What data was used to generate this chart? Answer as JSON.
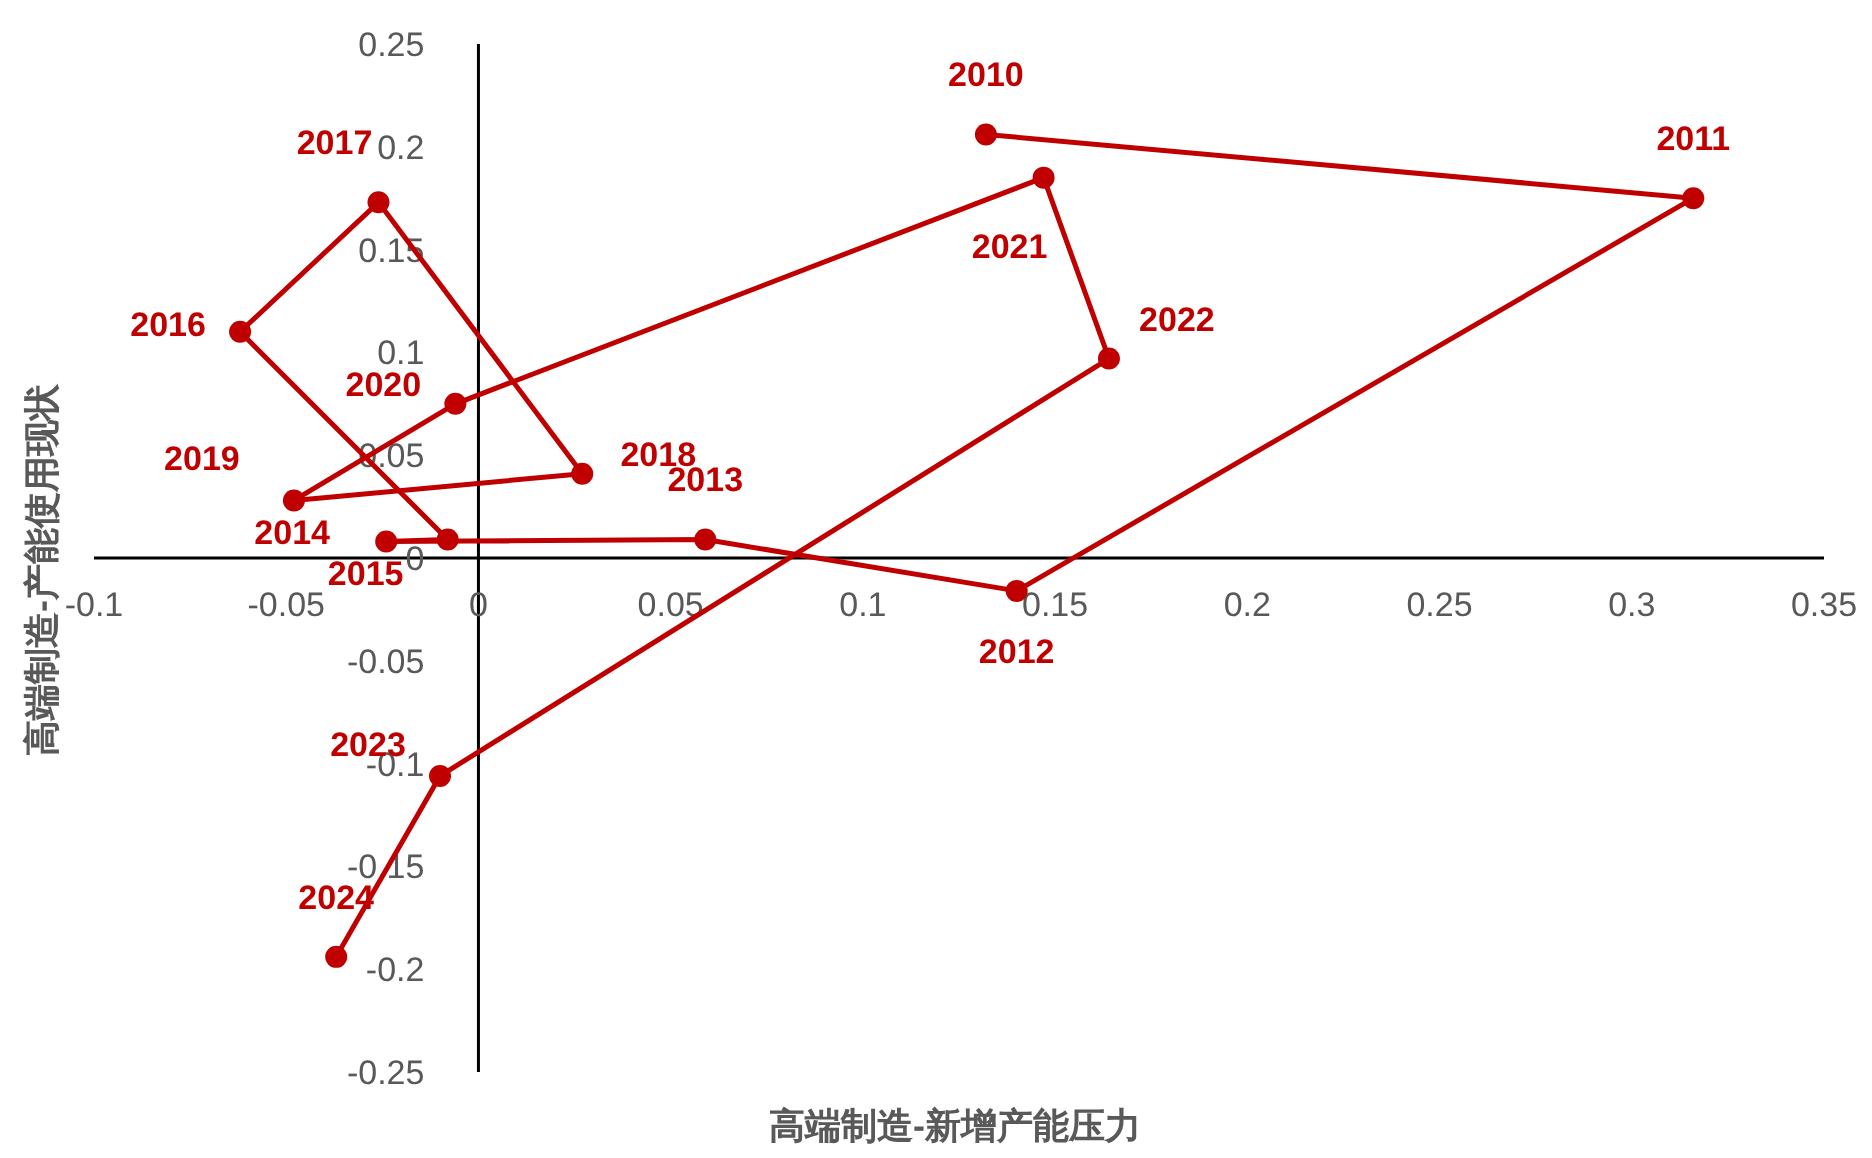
{
  "chart_data": {
    "type": "line",
    "xlabel": "高端制造-新增产能压力",
    "ylabel": "高端制造-产能使用现状",
    "xlim": [
      -0.1,
      0.35
    ],
    "xticks": [
      -0.1,
      -0.05,
      0,
      0.05,
      0.1,
      0.15,
      0.2,
      0.25,
      0.3,
      0.35
    ],
    "ylim": [
      -0.25,
      0.25
    ],
    "yticks": [
      -0.25,
      -0.2,
      -0.15,
      -0.1,
      -0.05,
      0,
      0.05,
      0.1,
      0.15,
      0.2,
      0.25
    ],
    "grid": false,
    "marker": "circle",
    "line_style": "solid",
    "series": [
      {
        "color": "#c00000",
        "x": [
          0.132,
          0.316,
          0.14,
          0.059,
          -0.024,
          -0.008,
          -0.062,
          -0.026,
          0.027,
          -0.048,
          -0.006,
          0.147,
          0.164,
          -0.01,
          -0.037
        ],
        "values": [
          0.206,
          0.175,
          -0.016,
          0.009,
          0.008,
          0.009,
          0.11,
          0.173,
          0.041,
          0.028,
          0.075,
          0.185,
          0.097,
          -0.106,
          -0.194
        ]
      }
    ],
    "annotations": [
      {
        "text": "2010",
        "x": 0.132,
        "y": 0.206
      },
      {
        "text": "2011",
        "x": 0.316,
        "y": 0.175
      },
      {
        "text": "2012",
        "x": 0.14,
        "y": -0.016
      },
      {
        "text": "2013",
        "x": 0.059,
        "y": 0.009
      },
      {
        "text": "2014",
        "x": -0.024,
        "y": 0.008
      },
      {
        "text": "2015",
        "x": -0.008,
        "y": 0.009
      },
      {
        "text": "2016",
        "x": -0.062,
        "y": 0.11
      },
      {
        "text": "2017",
        "x": -0.026,
        "y": 0.173
      },
      {
        "text": "2018",
        "x": 0.027,
        "y": 0.041
      },
      {
        "text": "2019",
        "x": -0.048,
        "y": 0.028
      },
      {
        "text": "2020",
        "x": -0.006,
        "y": 0.075
      },
      {
        "text": "2021",
        "x": 0.147,
        "y": 0.185
      },
      {
        "text": "2022",
        "x": 0.164,
        "y": 0.097
      },
      {
        "text": "2023",
        "x": -0.01,
        "y": -0.106
      },
      {
        "text": "2024",
        "x": -0.037,
        "y": -0.194
      }
    ]
  }
}
